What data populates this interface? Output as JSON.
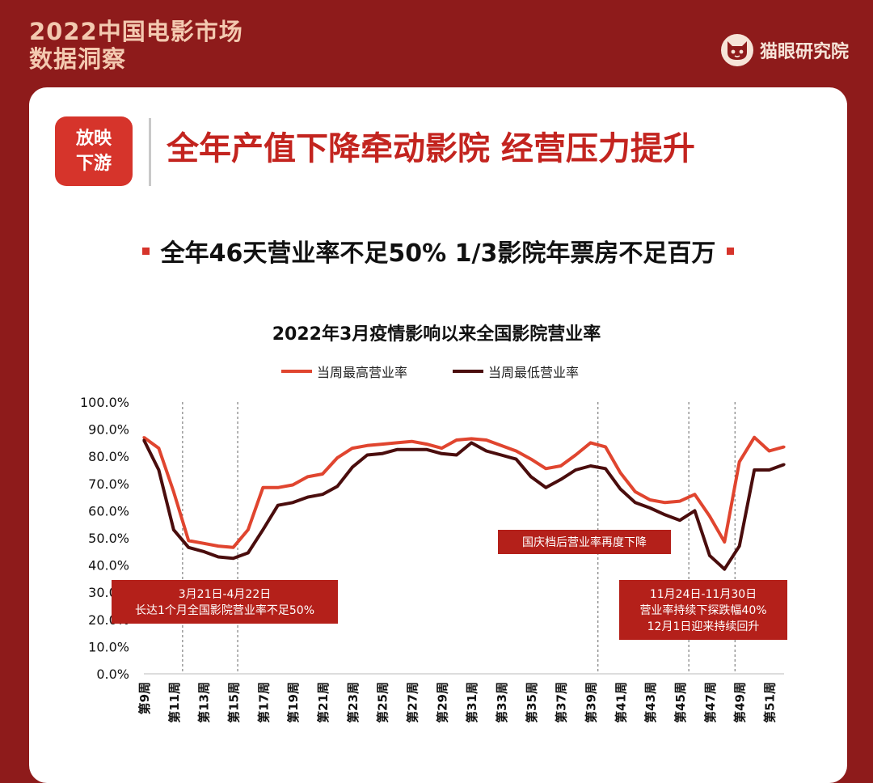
{
  "brand": {
    "title_line1": "2022中国电影市场",
    "title_line2": "数据洞察",
    "logo_text": "猫眼研究院",
    "logo_icon": "cat-face-icon"
  },
  "section": {
    "badge_line1": "放映",
    "badge_line2": "下游",
    "headline": "全年产值下降牵动影院 经营压力提升",
    "subheadline": "全年46天营业率不足50% 1/3影院年票房不足百万"
  },
  "colors": {
    "background": "#8e1b1b",
    "accent": "#d6342b",
    "series_high": "#e0452f",
    "series_low": "#4a0d0d",
    "annotation_bg": "#b4201a"
  },
  "chart_data": {
    "type": "line",
    "title": "2022年3月疫情影响以来全国影院营业率",
    "legend_position": "top-center",
    "grid": false,
    "ylim": [
      0,
      100
    ],
    "y_ticks": [
      "0.0%",
      "10.0%",
      "20.0%",
      "30.0%",
      "40.0%",
      "50.0%",
      "60.0%",
      "70.0%",
      "80.0%",
      "90.0%",
      "100.0%"
    ],
    "x_tick_labels": [
      "第9周",
      "第11周",
      "第13周",
      "第15周",
      "第17周",
      "第19周",
      "第21周",
      "第23周",
      "第25周",
      "第27周",
      "第29周",
      "第31周",
      "第33周",
      "第35周",
      "第37周",
      "第39周",
      "第41周",
      "第43周",
      "第45周",
      "第47周",
      "第49周",
      "第51周"
    ],
    "x_ticks": [
      9,
      11,
      13,
      15,
      17,
      19,
      21,
      23,
      25,
      27,
      29,
      31,
      33,
      35,
      37,
      39,
      41,
      43,
      45,
      47,
      49,
      51
    ],
    "x": [
      9,
      10,
      11,
      12,
      13,
      14,
      15,
      16,
      17,
      18,
      19,
      20,
      21,
      22,
      23,
      24,
      25,
      26,
      27,
      28,
      29,
      30,
      31,
      32,
      33,
      34,
      35,
      36,
      37,
      38,
      39,
      40,
      41,
      42,
      43,
      44,
      45,
      46,
      47,
      48,
      49,
      50,
      51,
      52
    ],
    "series": [
      {
        "name": "当周最高营业率",
        "values": [
          87,
          83,
          67,
          49,
          48,
          47,
          46.5,
          53,
          68.5,
          68.5,
          69.5,
          72.5,
          73.5,
          79.5,
          83,
          84,
          84.5,
          85,
          85.5,
          84.5,
          83,
          86,
          86.5,
          86,
          84,
          82,
          79,
          75.5,
          76.5,
          80.5,
          85,
          83.5,
          74,
          67,
          64,
          63,
          63.5,
          66,
          58,
          48.5,
          78,
          87,
          82,
          83.5
        ]
      },
      {
        "name": "当周最低营业率",
        "values": [
          86,
          75,
          53,
          46.5,
          45,
          43,
          42.5,
          44.5,
          53,
          62,
          63,
          65,
          66,
          69,
          76,
          80.5,
          81,
          82.5,
          82.5,
          82.5,
          81,
          80.5,
          85,
          82,
          80.5,
          79,
          72.5,
          68.5,
          71.5,
          75,
          76.5,
          75.5,
          68,
          63,
          61,
          58.5,
          56.5,
          60,
          43.5,
          38.5,
          47,
          75,
          75,
          77
        ]
      }
    ],
    "reference_lines_x": [
      11.6,
      15.3,
      39.5,
      45.6,
      48.7
    ],
    "annotations": [
      {
        "lines": [
          "3月21日-4月22日",
          "长达1个月全国影院营业率不足50%"
        ]
      },
      {
        "lines": [
          "国庆档后营业率再度下降"
        ]
      },
      {
        "lines": [
          "11月24日-11月30日",
          "营业率持续下探跌幅40%",
          "12月1日迎来持续回升"
        ]
      }
    ]
  }
}
